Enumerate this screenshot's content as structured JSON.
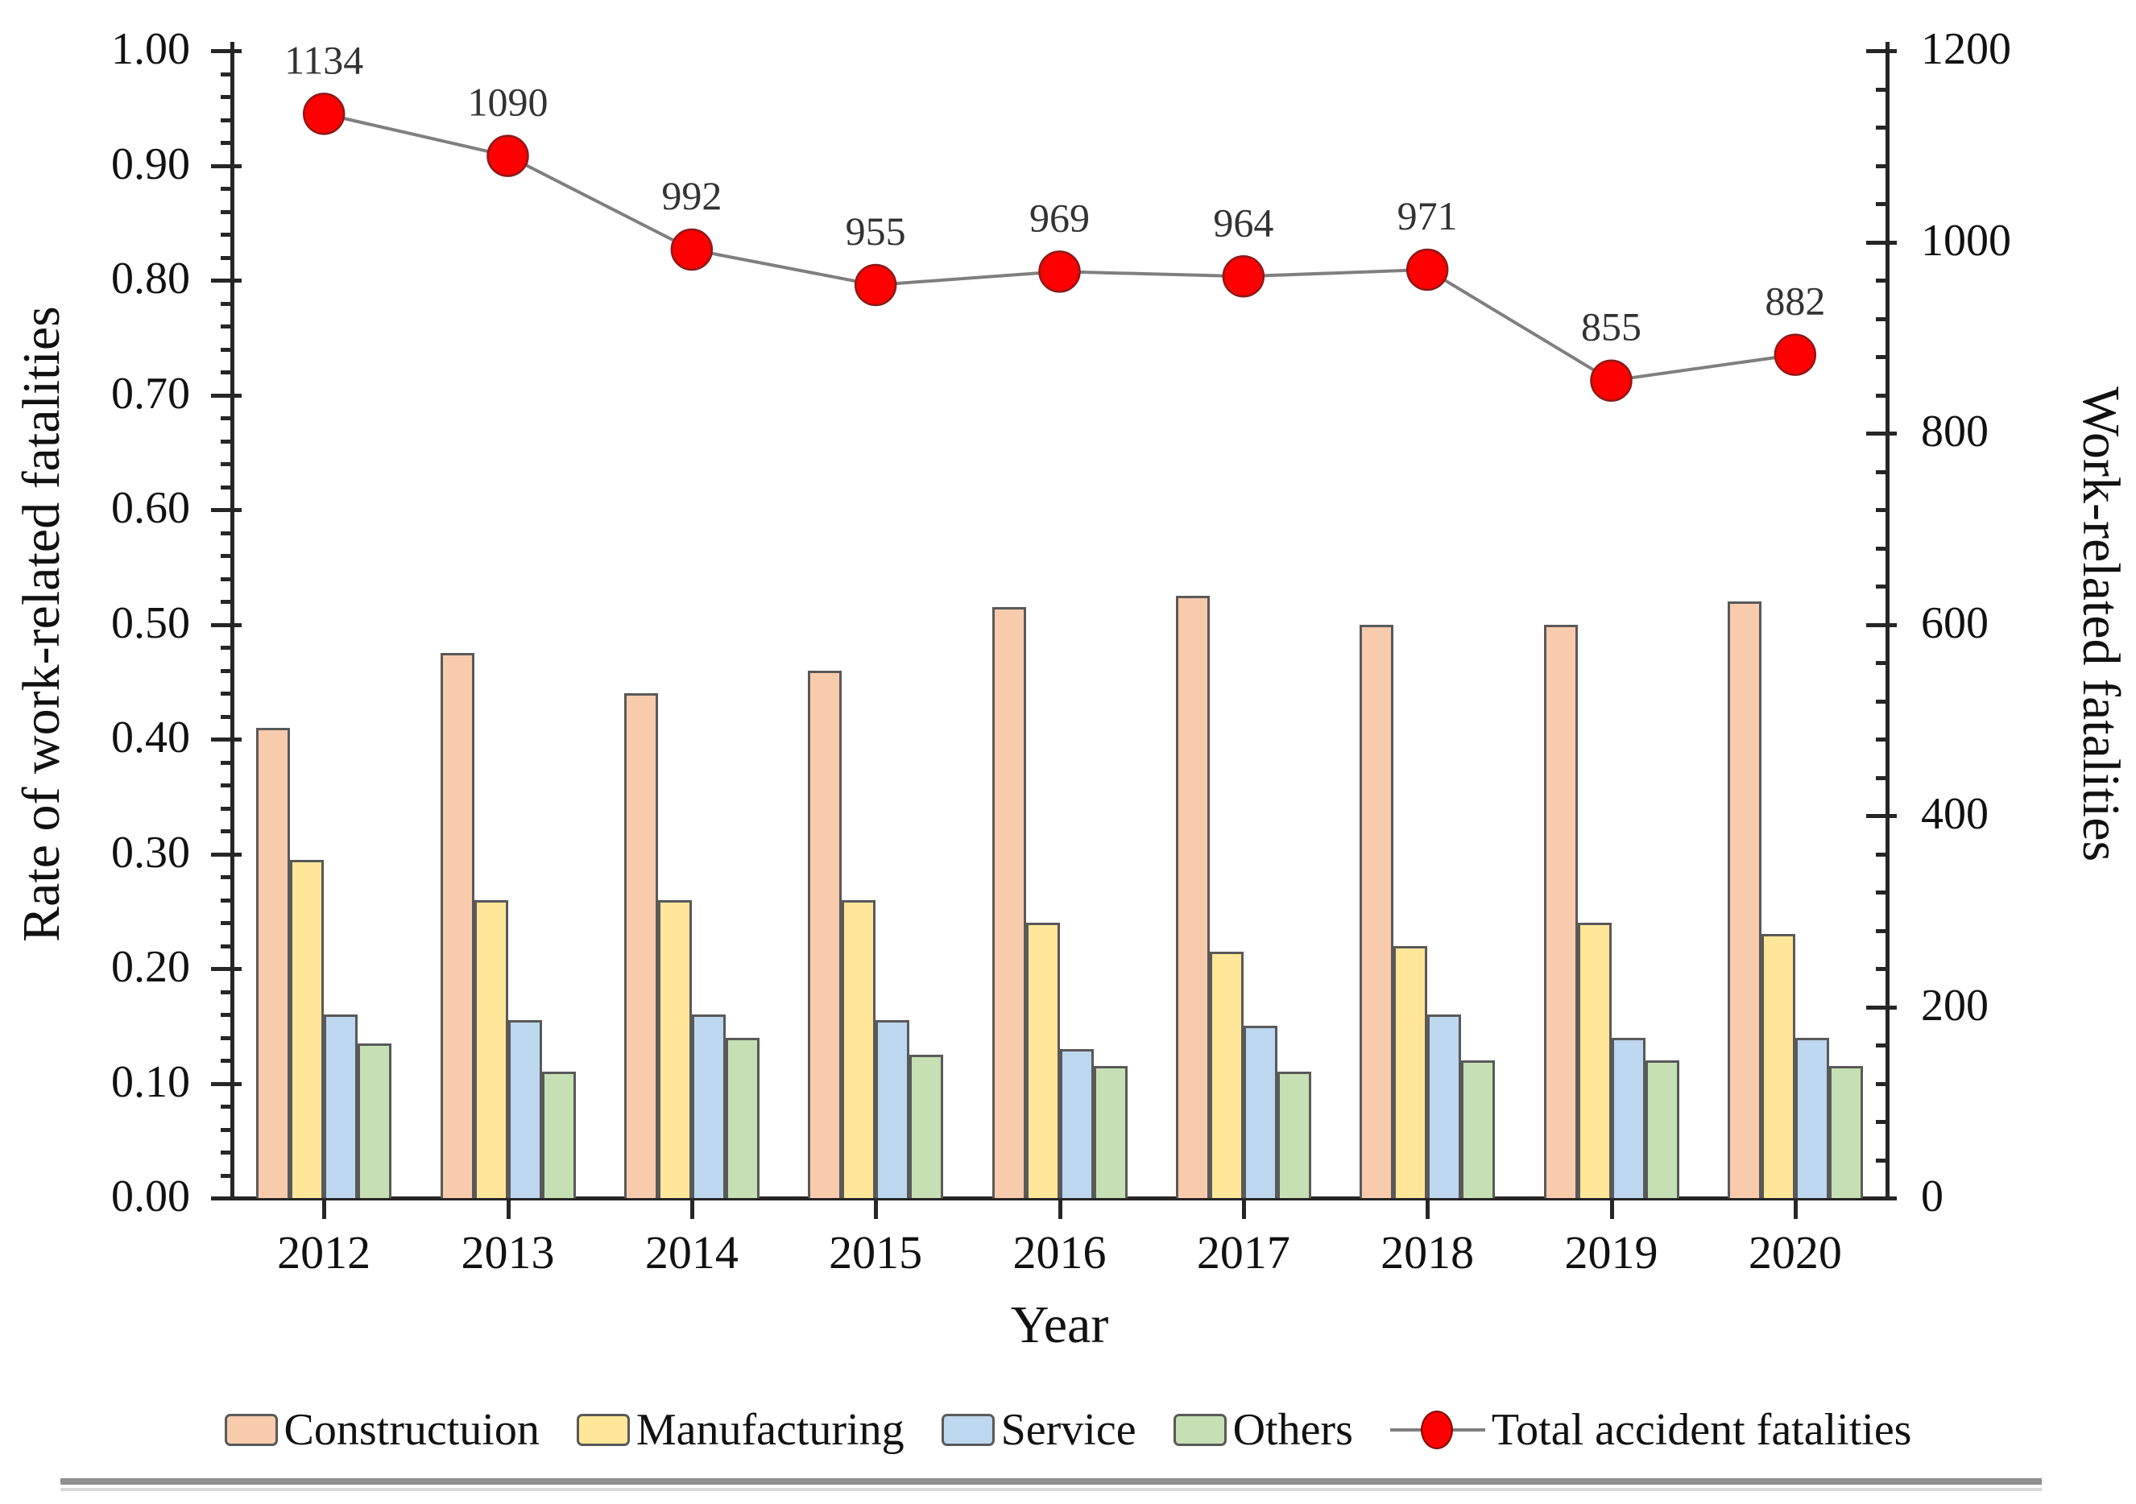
{
  "chart_data": {
    "type": "bar+line",
    "x_axis": {
      "label": "Year",
      "categories": [
        "2012",
        "2013",
        "2014",
        "2015",
        "2016",
        "2017",
        "2018",
        "2019",
        "2020"
      ]
    },
    "left_axis": {
      "label": "Rate of work-related fatalities",
      "min": 0,
      "max": 1.0,
      "tick_labels": [
        "0.00",
        "0.10",
        "0.20",
        "0.30",
        "0.40",
        "0.50",
        "0.60",
        "0.70",
        "0.80",
        "0.90",
        "1.00"
      ],
      "minor_per_major": 5
    },
    "right_axis": {
      "label": "Work-related fatalities",
      "min": 0,
      "max": 1200,
      "tick_labels": [
        "0",
        "200",
        "400",
        "600",
        "800",
        "1000",
        "1200"
      ],
      "minor_per_major": 5
    },
    "bar_series": [
      {
        "name": "Constructuion",
        "color": "#F8CBAD",
        "values": [
          0.41,
          0.475,
          0.44,
          0.46,
          0.515,
          0.525,
          0.5,
          0.5,
          0.52
        ]
      },
      {
        "name": "Manufacturing",
        "color": "#FFE699",
        "values": [
          0.295,
          0.26,
          0.26,
          0.26,
          0.24,
          0.215,
          0.22,
          0.24,
          0.23
        ]
      },
      {
        "name": "Service",
        "color": "#BDD7EE",
        "values": [
          0.16,
          0.155,
          0.16,
          0.155,
          0.13,
          0.15,
          0.16,
          0.14,
          0.14
        ]
      },
      {
        "name": "Others",
        "color": "#C6E0B4",
        "values": [
          0.135,
          0.11,
          0.14,
          0.125,
          0.115,
          0.11,
          0.12,
          0.12,
          0.115
        ]
      }
    ],
    "line_series": {
      "name": "Total accident fatalities",
      "marker_color": "#FF0000",
      "line_color": "#7F7F7F",
      "values": [
        1134,
        1090,
        992,
        955,
        969,
        964,
        971,
        855,
        882
      ],
      "data_labels": [
        "1134",
        "1090",
        "992",
        "955",
        "969",
        "964",
        "971",
        "855",
        "882"
      ]
    },
    "grid": false,
    "legend_position": "bottom"
  }
}
